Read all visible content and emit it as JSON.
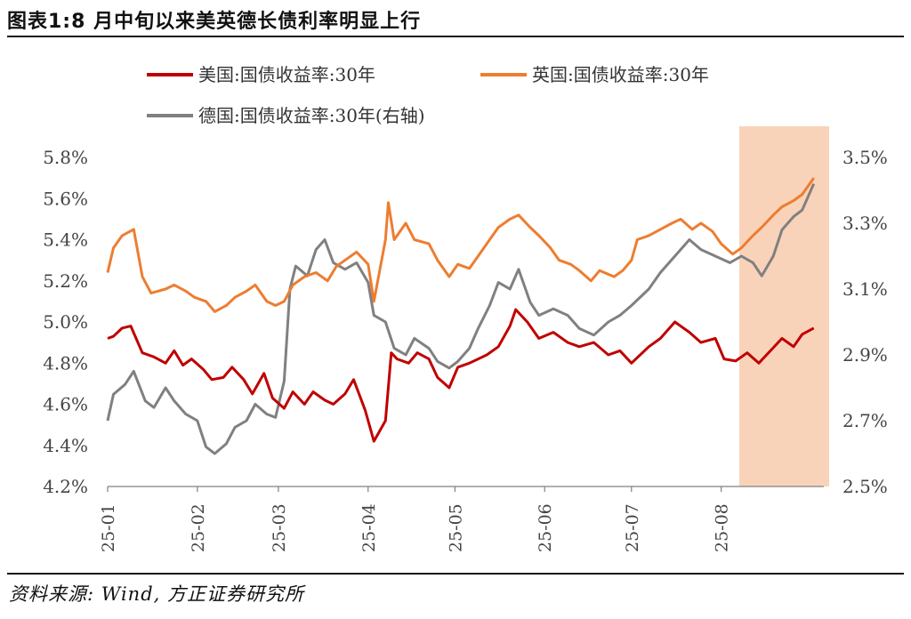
{
  "header": {
    "title": "图表1:8 月中旬以来美英德长债利率明显上行"
  },
  "footer": {
    "source": "资料来源: Wind, 方正证券研究所"
  },
  "colors": {
    "us": "#c00000",
    "uk": "#ed7d31",
    "de": "#808080",
    "highlight": "#f8cbad",
    "axis": "#808080"
  },
  "chart_data": {
    "type": "line",
    "x_ticks": [
      "25-01",
      "25-02",
      "25-03",
      "25-04",
      "25-05",
      "25-06",
      "25-07",
      "25-08"
    ],
    "y_left": {
      "min": 4.2,
      "max": 5.8,
      "ticks": [
        "4.2%",
        "4.4%",
        "4.6%",
        "4.8%",
        "5.0%",
        "5.2%",
        "5.4%",
        "5.6%",
        "5.8%"
      ]
    },
    "y_right": {
      "min": 2.5,
      "max": 3.5,
      "ticks": [
        "2.5%",
        "2.7%",
        "2.9%",
        "3.1%",
        "3.3%",
        "3.5%"
      ]
    },
    "highlight_range": [
      "2025-08-15",
      "2025-08-31"
    ],
    "series": [
      {
        "name": "美国:国债收益率:30年",
        "axis": "left",
        "color": "#c00000",
        "points": [
          [
            "2025-01-01",
            4.92
          ],
          [
            "2025-01-03",
            4.93
          ],
          [
            "2025-01-06",
            4.97
          ],
          [
            "2025-01-09",
            4.98
          ],
          [
            "2025-01-13",
            4.85
          ],
          [
            "2025-01-17",
            4.83
          ],
          [
            "2025-01-21",
            4.8
          ],
          [
            "2025-01-24",
            4.86
          ],
          [
            "2025-01-27",
            4.79
          ],
          [
            "2025-01-30",
            4.82
          ],
          [
            "2025-02-03",
            4.77
          ],
          [
            "2025-02-06",
            4.72
          ],
          [
            "2025-02-10",
            4.73
          ],
          [
            "2025-02-13",
            4.78
          ],
          [
            "2025-02-17",
            4.72
          ],
          [
            "2025-02-20",
            4.65
          ],
          [
            "2025-02-24",
            4.75
          ],
          [
            "2025-02-27",
            4.63
          ],
          [
            "2025-03-03",
            4.58
          ],
          [
            "2025-03-06",
            4.66
          ],
          [
            "2025-03-10",
            4.6
          ],
          [
            "2025-03-13",
            4.66
          ],
          [
            "2025-03-17",
            4.62
          ],
          [
            "2025-03-20",
            4.6
          ],
          [
            "2025-03-24",
            4.65
          ],
          [
            "2025-03-27",
            4.72
          ],
          [
            "2025-03-31",
            4.57
          ],
          [
            "2025-04-03",
            4.42
          ],
          [
            "2025-04-07",
            4.52
          ],
          [
            "2025-04-09",
            4.85
          ],
          [
            "2025-04-11",
            4.82
          ],
          [
            "2025-04-15",
            4.8
          ],
          [
            "2025-04-18",
            4.85
          ],
          [
            "2025-04-22",
            4.82
          ],
          [
            "2025-04-25",
            4.73
          ],
          [
            "2025-04-29",
            4.68
          ],
          [
            "2025-05-02",
            4.78
          ],
          [
            "2025-05-06",
            4.8
          ],
          [
            "2025-05-12",
            4.84
          ],
          [
            "2025-05-16",
            4.88
          ],
          [
            "2025-05-20",
            4.98
          ],
          [
            "2025-05-22",
            5.06
          ],
          [
            "2025-05-26",
            5.0
          ],
          [
            "2025-05-30",
            4.92
          ],
          [
            "2025-06-04",
            4.95
          ],
          [
            "2025-06-09",
            4.9
          ],
          [
            "2025-06-13",
            4.88
          ],
          [
            "2025-06-18",
            4.9
          ],
          [
            "2025-06-23",
            4.84
          ],
          [
            "2025-06-27",
            4.86
          ],
          [
            "2025-07-01",
            4.8
          ],
          [
            "2025-07-07",
            4.88
          ],
          [
            "2025-07-11",
            4.92
          ],
          [
            "2025-07-16",
            5.0
          ],
          [
            "2025-07-21",
            4.95
          ],
          [
            "2025-07-25",
            4.9
          ],
          [
            "2025-07-30",
            4.92
          ],
          [
            "2025-08-02",
            4.82
          ],
          [
            "2025-08-06",
            4.81
          ],
          [
            "2025-08-10",
            4.85
          ],
          [
            "2025-08-14",
            4.8
          ],
          [
            "2025-08-18",
            4.86
          ],
          [
            "2025-08-22",
            4.92
          ],
          [
            "2025-08-26",
            4.88
          ],
          [
            "2025-08-29",
            4.94
          ],
          [
            "2025-09-02",
            4.97
          ]
        ]
      },
      {
        "name": "英国:国债收益率:30年",
        "axis": "left",
        "color": "#ed7d31",
        "points": [
          [
            "2025-01-01",
            5.24
          ],
          [
            "2025-01-03",
            5.36
          ],
          [
            "2025-01-06",
            5.42
          ],
          [
            "2025-01-10",
            5.45
          ],
          [
            "2025-01-13",
            5.22
          ],
          [
            "2025-01-16",
            5.14
          ],
          [
            "2025-01-21",
            5.16
          ],
          [
            "2025-01-24",
            5.18
          ],
          [
            "2025-01-28",
            5.15
          ],
          [
            "2025-01-31",
            5.12
          ],
          [
            "2025-02-04",
            5.1
          ],
          [
            "2025-02-07",
            5.05
          ],
          [
            "2025-02-11",
            5.08
          ],
          [
            "2025-02-14",
            5.12
          ],
          [
            "2025-02-18",
            5.15
          ],
          [
            "2025-02-21",
            5.18
          ],
          [
            "2025-02-25",
            5.1
          ],
          [
            "2025-02-28",
            5.08
          ],
          [
            "2025-03-03",
            5.1
          ],
          [
            "2025-03-06",
            5.18
          ],
          [
            "2025-03-10",
            5.22
          ],
          [
            "2025-03-14",
            5.24
          ],
          [
            "2025-03-18",
            5.2
          ],
          [
            "2025-03-21",
            5.27
          ],
          [
            "2025-03-25",
            5.31
          ],
          [
            "2025-03-28",
            5.34
          ],
          [
            "2025-04-01",
            5.28
          ],
          [
            "2025-04-03",
            5.1
          ],
          [
            "2025-04-07",
            5.4
          ],
          [
            "2025-04-08",
            5.58
          ],
          [
            "2025-04-10",
            5.4
          ],
          [
            "2025-04-14",
            5.48
          ],
          [
            "2025-04-17",
            5.4
          ],
          [
            "2025-04-22",
            5.38
          ],
          [
            "2025-04-25",
            5.3
          ],
          [
            "2025-04-29",
            5.22
          ],
          [
            "2025-05-02",
            5.28
          ],
          [
            "2025-05-06",
            5.26
          ],
          [
            "2025-05-09",
            5.32
          ],
          [
            "2025-05-13",
            5.4
          ],
          [
            "2025-05-16",
            5.46
          ],
          [
            "2025-05-20",
            5.5
          ],
          [
            "2025-05-23",
            5.52
          ],
          [
            "2025-05-27",
            5.46
          ],
          [
            "2025-05-30",
            5.42
          ],
          [
            "2025-06-03",
            5.36
          ],
          [
            "2025-06-06",
            5.3
          ],
          [
            "2025-06-10",
            5.28
          ],
          [
            "2025-06-13",
            5.25
          ],
          [
            "2025-06-17",
            5.2
          ],
          [
            "2025-06-20",
            5.25
          ],
          [
            "2025-06-25",
            5.22
          ],
          [
            "2025-06-28",
            5.25
          ],
          [
            "2025-07-01",
            5.3
          ],
          [
            "2025-07-03",
            5.4
          ],
          [
            "2025-07-07",
            5.42
          ],
          [
            "2025-07-11",
            5.45
          ],
          [
            "2025-07-15",
            5.48
          ],
          [
            "2025-07-18",
            5.5
          ],
          [
            "2025-07-22",
            5.45
          ],
          [
            "2025-07-25",
            5.48
          ],
          [
            "2025-07-29",
            5.44
          ],
          [
            "2025-08-01",
            5.38
          ],
          [
            "2025-08-05",
            5.33
          ],
          [
            "2025-08-08",
            5.36
          ],
          [
            "2025-08-12",
            5.42
          ],
          [
            "2025-08-15",
            5.46
          ],
          [
            "2025-08-19",
            5.52
          ],
          [
            "2025-08-22",
            5.56
          ],
          [
            "2025-08-26",
            5.59
          ],
          [
            "2025-08-29",
            5.62
          ],
          [
            "2025-09-02",
            5.7
          ]
        ]
      },
      {
        "name": "德国:国债收益率:30年(右轴)",
        "axis": "right",
        "color": "#808080",
        "points": [
          [
            "2025-01-01",
            2.7
          ],
          [
            "2025-01-03",
            2.78
          ],
          [
            "2025-01-07",
            2.81
          ],
          [
            "2025-01-10",
            2.85
          ],
          [
            "2025-01-14",
            2.76
          ],
          [
            "2025-01-17",
            2.74
          ],
          [
            "2025-01-21",
            2.8
          ],
          [
            "2025-01-24",
            2.76
          ],
          [
            "2025-01-28",
            2.72
          ],
          [
            "2025-02-01",
            2.7
          ],
          [
            "2025-02-04",
            2.62
          ],
          [
            "2025-02-07",
            2.6
          ],
          [
            "2025-02-11",
            2.63
          ],
          [
            "2025-02-14",
            2.68
          ],
          [
            "2025-02-18",
            2.7
          ],
          [
            "2025-02-21",
            2.75
          ],
          [
            "2025-02-25",
            2.72
          ],
          [
            "2025-02-28",
            2.71
          ],
          [
            "2025-03-03",
            2.82
          ],
          [
            "2025-03-05",
            3.1
          ],
          [
            "2025-03-07",
            3.17
          ],
          [
            "2025-03-11",
            3.14
          ],
          [
            "2025-03-14",
            3.22
          ],
          [
            "2025-03-17",
            3.25
          ],
          [
            "2025-03-20",
            3.18
          ],
          [
            "2025-03-24",
            3.16
          ],
          [
            "2025-03-28",
            3.18
          ],
          [
            "2025-04-01",
            3.12
          ],
          [
            "2025-04-03",
            3.02
          ],
          [
            "2025-04-07",
            3.0
          ],
          [
            "2025-04-10",
            2.92
          ],
          [
            "2025-04-14",
            2.9
          ],
          [
            "2025-04-17",
            2.95
          ],
          [
            "2025-04-22",
            2.92
          ],
          [
            "2025-04-25",
            2.88
          ],
          [
            "2025-04-29",
            2.86
          ],
          [
            "2025-05-02",
            2.88
          ],
          [
            "2025-05-06",
            2.92
          ],
          [
            "2025-05-09",
            2.98
          ],
          [
            "2025-05-13",
            3.05
          ],
          [
            "2025-05-16",
            3.12
          ],
          [
            "2025-05-20",
            3.1
          ],
          [
            "2025-05-23",
            3.16
          ],
          [
            "2025-05-27",
            3.06
          ],
          [
            "2025-05-30",
            3.02
          ],
          [
            "2025-06-04",
            3.04
          ],
          [
            "2025-06-09",
            3.02
          ],
          [
            "2025-06-13",
            2.98
          ],
          [
            "2025-06-18",
            2.96
          ],
          [
            "2025-06-23",
            3.0
          ],
          [
            "2025-06-27",
            3.02
          ],
          [
            "2025-07-01",
            3.05
          ],
          [
            "2025-07-07",
            3.1
          ],
          [
            "2025-07-11",
            3.15
          ],
          [
            "2025-07-16",
            3.2
          ],
          [
            "2025-07-21",
            3.25
          ],
          [
            "2025-07-25",
            3.22
          ],
          [
            "2025-07-30",
            3.2
          ],
          [
            "2025-08-04",
            3.18
          ],
          [
            "2025-08-08",
            3.2
          ],
          [
            "2025-08-12",
            3.18
          ],
          [
            "2025-08-15",
            3.14
          ],
          [
            "2025-08-19",
            3.2
          ],
          [
            "2025-08-22",
            3.28
          ],
          [
            "2025-08-26",
            3.32
          ],
          [
            "2025-08-29",
            3.34
          ],
          [
            "2025-09-02",
            3.42
          ]
        ]
      }
    ]
  }
}
